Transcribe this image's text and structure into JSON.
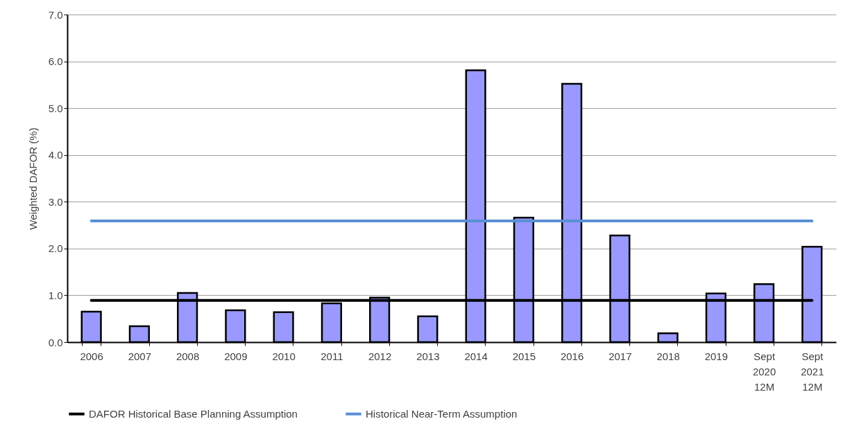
{
  "chart_data": {
    "type": "bar",
    "ylabel": "Weighted DAFOR (%)",
    "categories": [
      "2006",
      "2007",
      "2008",
      "2009",
      "2010",
      "2011",
      "2012",
      "2013",
      "2014",
      "2015",
      "2016",
      "2017",
      "2018",
      "2019",
      "Sept 2020 12M",
      "Sept 2021 12M"
    ],
    "series": [
      {
        "color": "#9999ff",
        "values": [
          0.65,
          0.34,
          1.05,
          0.68,
          0.64,
          0.83,
          0.95,
          0.55,
          5.81,
          2.66,
          5.52,
          2.28,
          0.19,
          1.04,
          1.24,
          2.04
        ]
      },
      {
        "type": "line",
        "name": "DAFOR Historical Base Planning Assumption",
        "color": "#000000",
        "values": [
          0.89,
          0.89,
          0.89,
          0.89,
          0.89,
          0.89,
          0.89,
          0.89,
          0.89,
          0.89,
          0.89,
          0.89,
          0.89,
          0.89,
          0.89,
          0.89
        ]
      },
      {
        "type": "line",
        "name": "Historical Near-Term Assumption",
        "color": "#5b8fd6",
        "values": [
          2.59,
          2.59,
          2.59,
          2.59,
          2.59,
          2.59,
          2.59,
          2.59,
          2.59,
          2.59,
          2.59,
          2.59,
          2.59,
          2.59,
          2.59,
          2.59
        ]
      }
    ],
    "ylim": [
      0,
      7
    ],
    "yticks": [
      {
        "value": 0,
        "label": "0.0"
      },
      {
        "value": 1,
        "label": "1.0"
      },
      {
        "value": 2,
        "label": "2.0"
      },
      {
        "value": 3,
        "label": "3.0"
      },
      {
        "value": 4,
        "label": "4.0"
      },
      {
        "value": 5,
        "label": "5.0"
      },
      {
        "value": 6,
        "label": "6.0"
      },
      {
        "value": 7,
        "label": "7.0"
      }
    ],
    "grid": "y",
    "legend": "bottom"
  }
}
